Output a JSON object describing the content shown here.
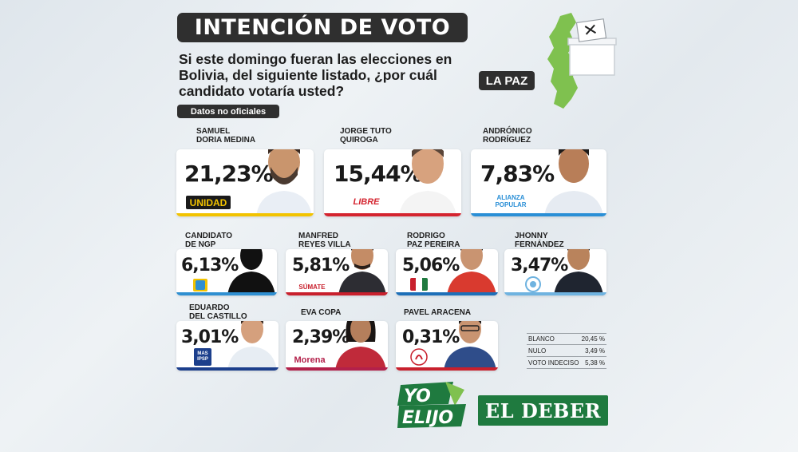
{
  "header": {
    "title": "INTENCIÓN DE VOTO",
    "question_lines": [
      "Si este domingo fueran las elecciones en",
      "Bolivia, del siguiente listado, ¿por cuál",
      "candidato votaría usted?"
    ],
    "disclaimer": "Datos no oficiales",
    "region": "LA PAZ"
  },
  "chart_data": {
    "type": "table",
    "unit": "%",
    "candidates": [
      {
        "name_lines": [
          "SAMUEL",
          "DORIA MEDINA"
        ],
        "value": 21.23,
        "label": "21,23%",
        "party": "UNIDAD",
        "color": "#f2c300"
      },
      {
        "name_lines": [
          "JORGE TUTO",
          "QUIROGA"
        ],
        "value": 15.44,
        "label": "15,44%",
        "party": "LIBRE",
        "color": "#d4242f"
      },
      {
        "name_lines": [
          "ANDRÓNICO",
          "RODRÍGUEZ"
        ],
        "value": 7.83,
        "label": "7,83%",
        "party": "ALIANZA POPULAR",
        "color": "#2a8fd6"
      },
      {
        "name_lines": [
          "CANDIDATO",
          "DE NGP"
        ],
        "value": 6.13,
        "label": "6,13%",
        "party": "",
        "color": "#2f8fd1"
      },
      {
        "name_lines": [
          "MANFRED",
          "REYES VILLA"
        ],
        "value": 5.81,
        "label": "5,81%",
        "party": "SÚMATE",
        "color": "#c8202d"
      },
      {
        "name_lines": [
          "RODRIGO",
          "PAZ PEREIRA"
        ],
        "value": 5.06,
        "label": "5,06%",
        "party": "",
        "color": "#1d6fb8"
      },
      {
        "name_lines": [
          "JHONNY",
          "FERNÁNDEZ"
        ],
        "value": 3.47,
        "label": "3,47%",
        "party": "",
        "color": "#6fb3e0"
      },
      {
        "name_lines": [
          "EDUARDO",
          "DEL CASTILLO"
        ],
        "value": 3.01,
        "label": "3,01%",
        "party": "MAS IPSP",
        "color": "#1c3f8c"
      },
      {
        "name_lines": [
          "EVA COPA"
        ],
        "value": 2.39,
        "label": "2,39%",
        "party": "Morena",
        "color": "#b3204a"
      },
      {
        "name_lines": [
          "PAVEL ARACENA"
        ],
        "value": 0.31,
        "label": "0,31%",
        "party": "",
        "color": "#c8202d"
      }
    ],
    "others": [
      {
        "label": "BLANCO",
        "value": 20.45,
        "text": "20,45 %"
      },
      {
        "label": "NULO",
        "value": 3.49,
        "text": "3,49 %"
      },
      {
        "label": "VOTO INDECISO",
        "value": 5.38,
        "text": "5,38 %"
      }
    ]
  },
  "brands": {
    "yo_line1": "YO",
    "yo_line2": "ELIJO",
    "deber": "EL DEBER"
  },
  "colors": {
    "green": "#1f7a3f",
    "map_green": "#7fc14f",
    "dark": "#2f2f2f"
  }
}
